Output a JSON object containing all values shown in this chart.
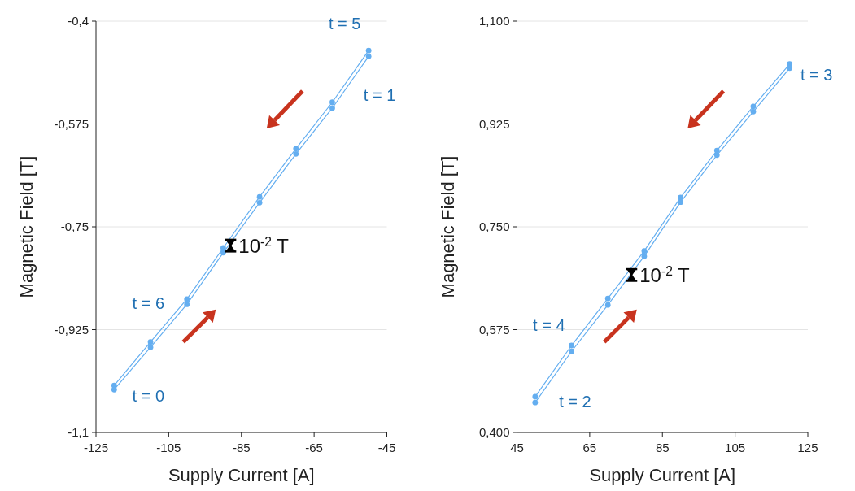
{
  "chart_data": [
    {
      "type": "line",
      "xlabel": "Supply Current [A]",
      "ylabel": "Magnetic Field [T]",
      "xlim": [
        -125,
        -45
      ],
      "xticks": [
        -125,
        -105,
        -85,
        -65,
        -45
      ],
      "ylim": [
        -1.1,
        -0.4
      ],
      "yticks": [
        {
          "value": -1.1,
          "label": "-1,1"
        },
        {
          "value": -0.925,
          "label": "-0,925"
        },
        {
          "value": -0.75,
          "label": "-0,75"
        },
        {
          "value": -0.575,
          "label": "-0,575"
        },
        {
          "value": -0.4,
          "label": "-0,4"
        }
      ],
      "grid": "y",
      "marker": "circle",
      "line_style": "solid",
      "series": [
        {
          "color": "#64aef0",
          "x": [
            -120,
            -110,
            -100,
            -90,
            -80,
            -70,
            -60,
            -50
          ],
          "values": [
            -1.02,
            -0.946,
            -0.873,
            -0.786,
            -0.699,
            -0.617,
            -0.538,
            -0.45
          ]
        },
        {
          "color": "#64aef0",
          "x": [
            -120,
            -110,
            -100,
            -90,
            -80,
            -70,
            -60,
            -50
          ],
          "values": [
            -1.027,
            -0.955,
            -0.882,
            -0.794,
            -0.709,
            -0.626,
            -0.548,
            -0.46
          ]
        },
        {
          "type": "scatter",
          "color": "#000000",
          "marker": "none",
          "x": [
            -88
          ],
          "values": [
            -0.782
          ],
          "errors": [
            0.01
          ]
        }
      ],
      "annotations": [
        "t = 5",
        "t = 1",
        "t = 6",
        "t = 0",
        {
          "text": "10$^{-2}$ T",
          "x": -88,
          "y": -0.782
        }
      ]
    },
    {
      "type": "line",
      "xlabel": "Supply Current [A]",
      "ylabel": "Magnetic Field [T]",
      "xlim": [
        45,
        125
      ],
      "xticks": [
        45,
        65,
        85,
        105,
        125
      ],
      "ylim": [
        0.4,
        1.1
      ],
      "yticks": [
        {
          "value": 0.4,
          "label": "0,400"
        },
        {
          "value": 0.575,
          "label": "0,575"
        },
        {
          "value": 0.75,
          "label": "0,750"
        },
        {
          "value": 0.925,
          "label": "0,925"
        },
        {
          "value": 1.1,
          "label": "1,100"
        }
      ],
      "grid": "y",
      "marker": "circle",
      "line_style": "solid",
      "series": [
        {
          "color": "#64aef0",
          "x": [
            50,
            60,
            70,
            80,
            90,
            100,
            110,
            120
          ],
          "values": [
            0.461,
            0.548,
            0.628,
            0.709,
            0.8,
            0.88,
            0.955,
            1.027
          ]
        },
        {
          "color": "#64aef0",
          "x": [
            50,
            60,
            70,
            80,
            90,
            100,
            110,
            120
          ],
          "values": [
            0.451,
            0.538,
            0.617,
            0.7,
            0.792,
            0.872,
            0.946,
            1.02
          ]
        },
        {
          "type": "scatter",
          "color": "#000000",
          "marker": "none",
          "x": [
            76.5
          ],
          "values": [
            0.668
          ],
          "errors": [
            0.01
          ]
        }
      ],
      "annotations": [
        "t = 3",
        "t = 4",
        "t = 2",
        {
          "text": "10$^{-2}$ T",
          "x": 76.5,
          "y": 0.668
        }
      ]
    }
  ]
}
